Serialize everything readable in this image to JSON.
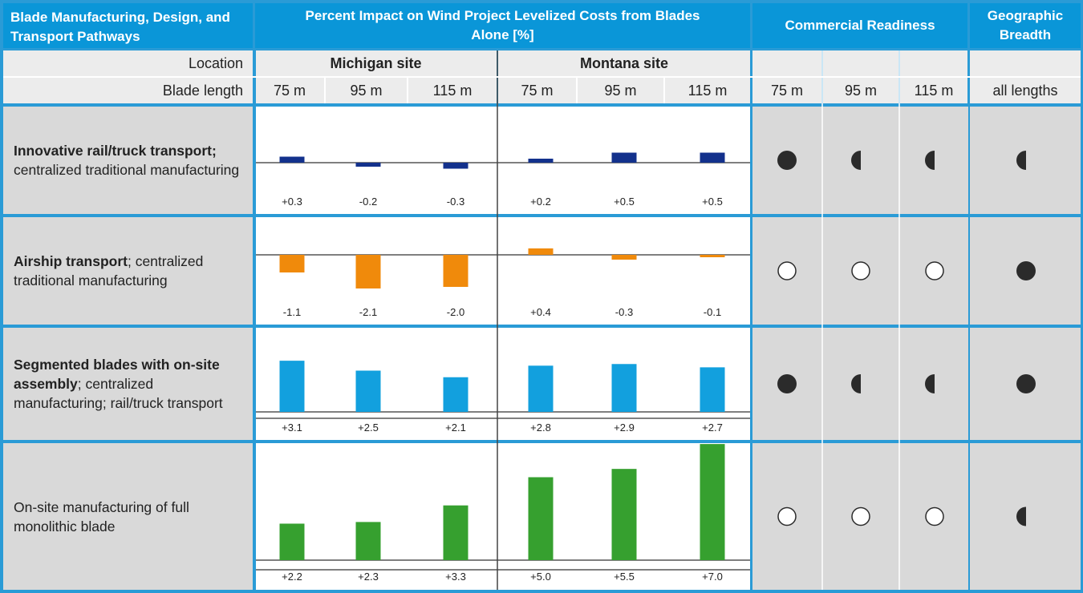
{
  "headers": {
    "pathways": "Blade Manufacturing, Design, and Transport Pathways",
    "impact": "Percent Impact on Wind Project Levelized Costs from Blades Alone [%]",
    "readiness": "Commercial Readiness",
    "breadth": "Geographic Breadth",
    "location_label": "Location",
    "length_label": "Blade length",
    "michigan": "Michigan site",
    "montana": "Montana site",
    "lengths": [
      "75 m",
      "95 m",
      "115 m",
      "75 m",
      "95 m",
      "115 m"
    ],
    "readiness_lengths": [
      "75 m",
      "95 m",
      "115 m"
    ],
    "all_lengths": "all lengths"
  },
  "rows": [
    {
      "label_bold": "Innovative rail/truck transport;",
      "label_rest": " centralized traditional manufacturing"
    },
    {
      "label_bold": "Airship transport",
      "label_rest": "; centralized traditional manufacturing"
    },
    {
      "label_bold": "Segmented blades with on-site assembly",
      "label_rest": "; centralized manufacturing; rail/truck transport"
    },
    {
      "label_bold": "",
      "label_rest": "On-site manufacturing of full monolithic blade"
    }
  ],
  "chart_data": {
    "type": "bar",
    "title": "Percent Impact on Wind Project Levelized Costs from Blades Alone [%]",
    "categories": [
      "Michigan 75 m",
      "Michigan 95 m",
      "Michigan 115 m",
      "Montana 75 m",
      "Montana 95 m",
      "Montana 115 m"
    ],
    "series": [
      {
        "name": "Innovative rail/truck transport",
        "color": "#13318c",
        "values": [
          0.3,
          -0.2,
          -0.3,
          0.2,
          0.5,
          0.5
        ],
        "labels": [
          "+0.3",
          "-0.2",
          "-0.3",
          "+0.2",
          "+0.5",
          "+0.5"
        ]
      },
      {
        "name": "Airship transport",
        "color": "#f08a0b",
        "values": [
          -1.1,
          -2.1,
          -2.0,
          0.4,
          -0.3,
          -0.1
        ],
        "labels": [
          "-1.1",
          "-2.1",
          "-2.0",
          "+0.4",
          "-0.3",
          "-0.1"
        ]
      },
      {
        "name": "Segmented blades with on-site assembly",
        "color": "#12a0de",
        "values": [
          3.1,
          2.5,
          2.1,
          2.8,
          2.9,
          2.7
        ],
        "labels": [
          "+3.1",
          "+2.5",
          "+2.1",
          "+2.8",
          "+2.9",
          "+2.7"
        ]
      },
      {
        "name": "On-site manufacturing of full monolithic blade",
        "color": "#36a02f",
        "values": [
          2.2,
          2.3,
          3.3,
          5.0,
          5.5,
          7.0
        ],
        "labels": [
          "+2.2",
          "+2.3",
          "+3.3",
          "+5.0",
          "+5.5",
          "+7.0"
        ]
      }
    ],
    "readiness": [
      [
        "full",
        "half",
        "half",
        "half"
      ],
      [
        "empty",
        "empty",
        "empty",
        "full"
      ],
      [
        "full",
        "half",
        "half",
        "full"
      ],
      [
        "empty",
        "empty",
        "empty",
        "half"
      ]
    ]
  }
}
